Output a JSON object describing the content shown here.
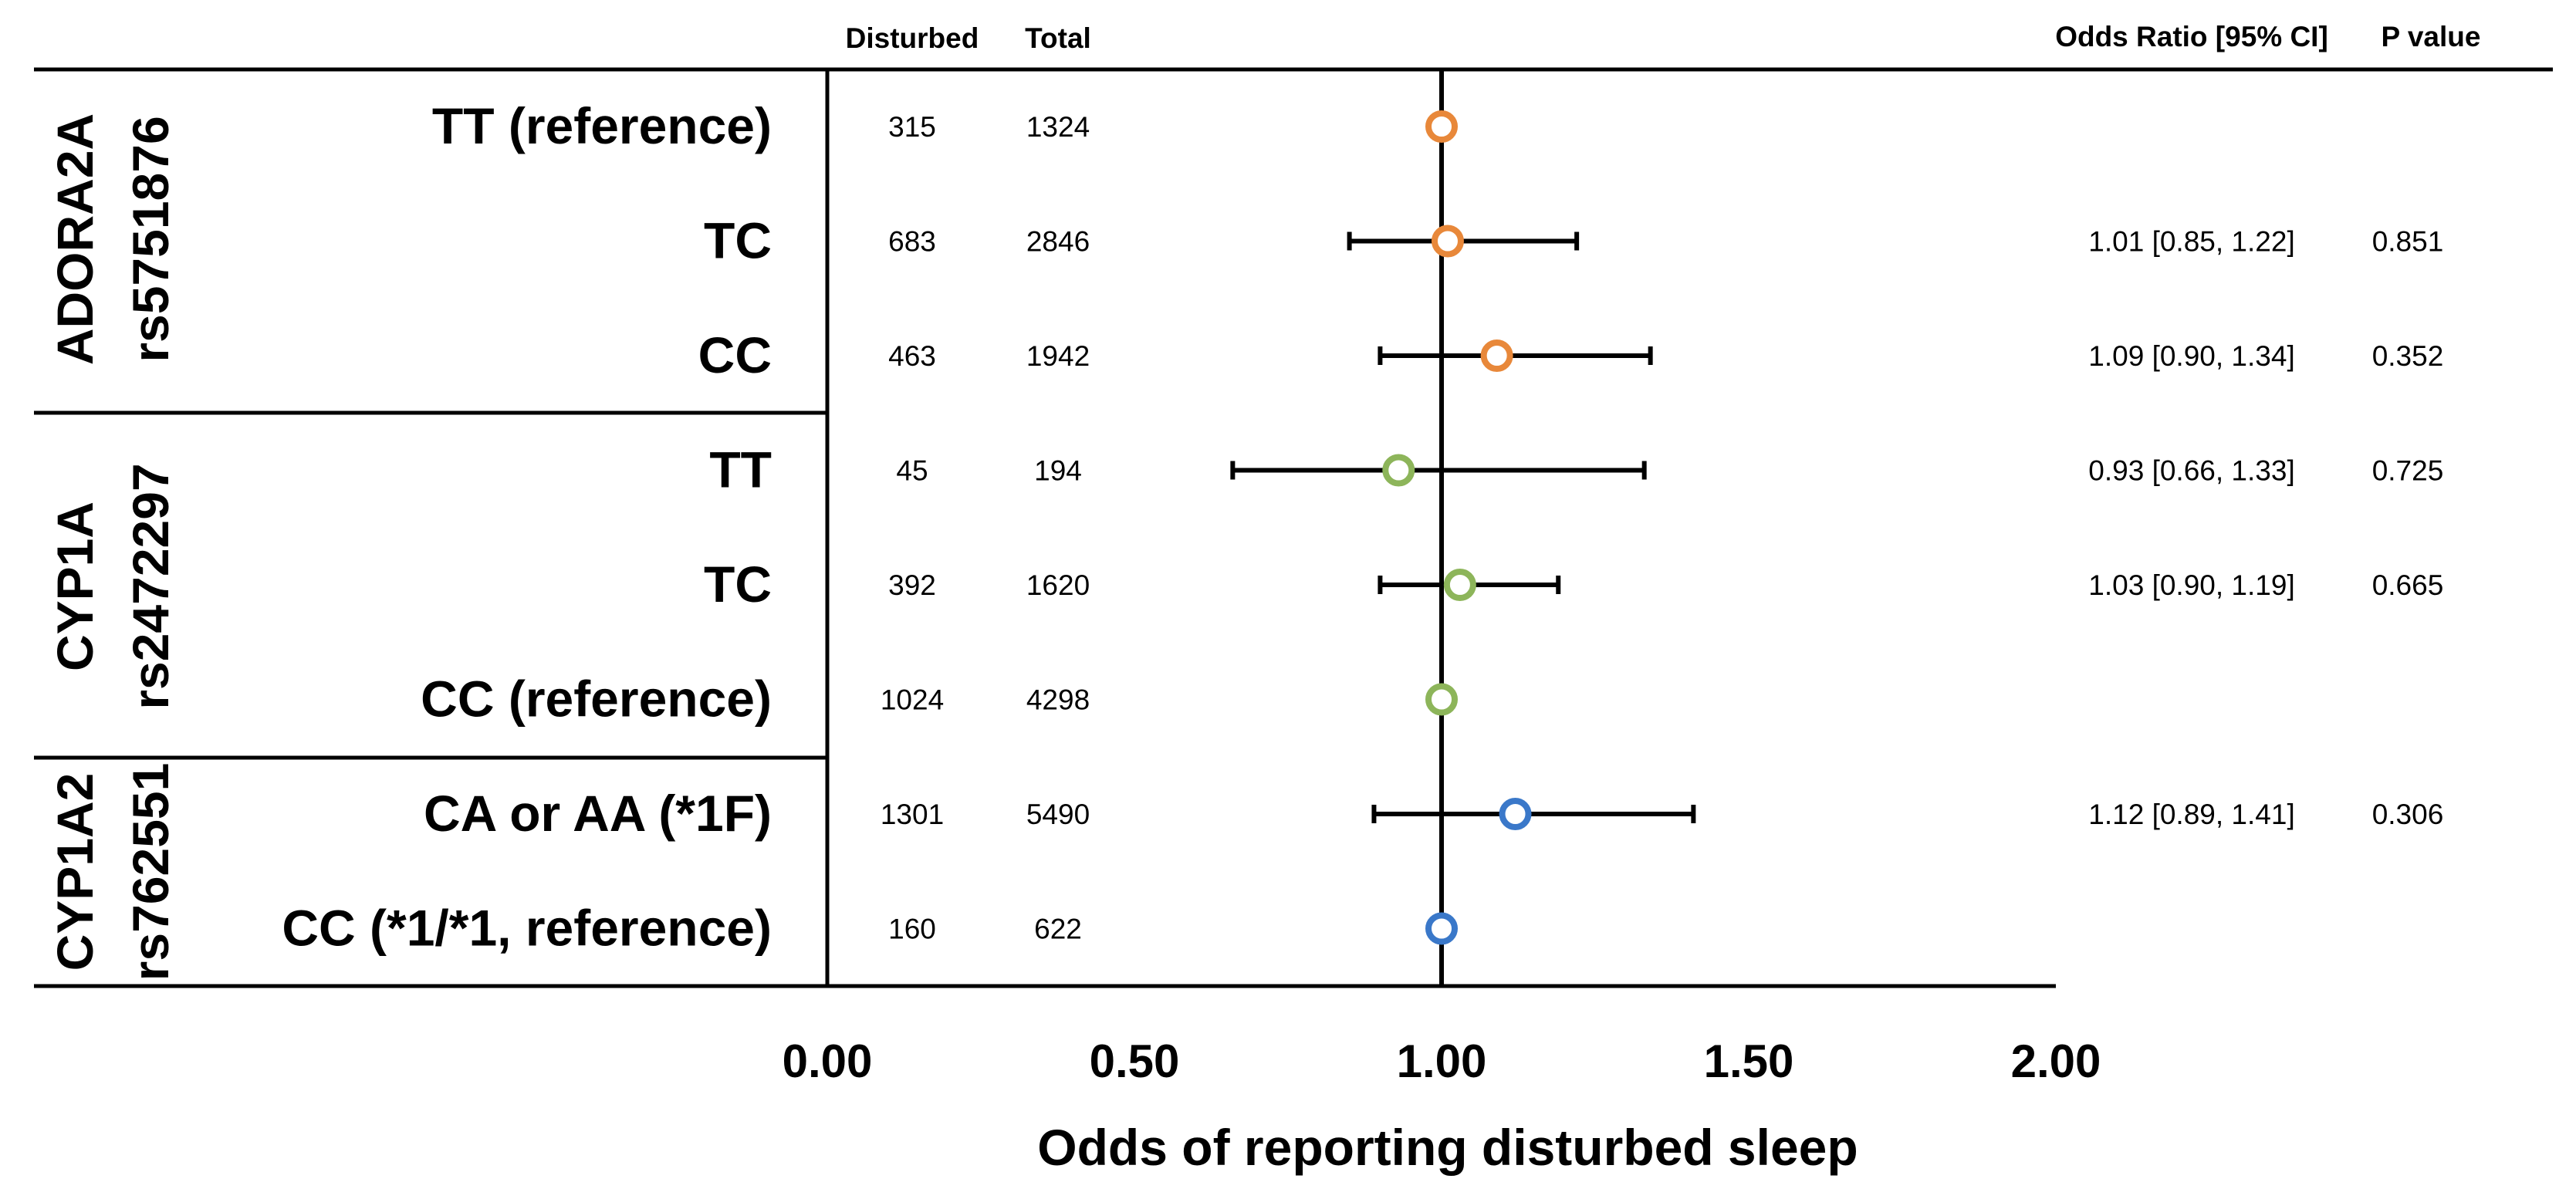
{
  "chart_data": {
    "type": "forest",
    "xlabel": "Odds of reporting disturbed sleep",
    "xlim": [
      0,
      2
    ],
    "xticks": [
      "0.00",
      "0.50",
      "1.00",
      "1.50",
      "2.00"
    ],
    "reference_line": 1.0,
    "headers": {
      "disturbed": "Disturbed",
      "total": "Total",
      "or_ci": "Odds Ratio [95% CI]",
      "p_value": "P value"
    },
    "groups": [
      {
        "gene": "ADORA2A",
        "snp": "rs5751876",
        "color": "#E8883A",
        "rows": [
          0,
          1,
          2
        ]
      },
      {
        "gene": "CYP1A",
        "snp": "rs2472297",
        "color": "#8DB55A",
        "rows": [
          3,
          4,
          5
        ]
      },
      {
        "gene": "CYP1A2",
        "snp": "rs762551",
        "color": "#3A78C9",
        "rows": [
          6,
          7
        ]
      }
    ],
    "rows": [
      {
        "genotype": "TT (reference)",
        "disturbed": "315",
        "total": "1324",
        "or": 1.0,
        "lo": null,
        "hi": null,
        "or_ci": "",
        "p": ""
      },
      {
        "genotype": "TC",
        "disturbed": "683",
        "total": "2846",
        "or": 1.01,
        "lo": 0.85,
        "hi": 1.22,
        "or_ci": "1.01 [0.85, 1.22]",
        "p": "0.851"
      },
      {
        "genotype": "CC",
        "disturbed": "463",
        "total": "1942",
        "or": 1.09,
        "lo": 0.9,
        "hi": 1.34,
        "or_ci": "1.09 [0.90, 1.34]",
        "p": "0.352"
      },
      {
        "genotype": "TT",
        "disturbed": "45",
        "total": "194",
        "or": 0.93,
        "lo": 0.66,
        "hi": 1.33,
        "or_ci": "0.93 [0.66, 1.33]",
        "p": "0.725"
      },
      {
        "genotype": "TC",
        "disturbed": "392",
        "total": "1620",
        "or": 1.03,
        "lo": 0.9,
        "hi": 1.19,
        "or_ci": "1.03 [0.90, 1.19]",
        "p": "0.665"
      },
      {
        "genotype": "CC (reference)",
        "disturbed": "1024",
        "total": "4298",
        "or": 1.0,
        "lo": null,
        "hi": null,
        "or_ci": "",
        "p": ""
      },
      {
        "genotype": "CA or AA (*1F)",
        "disturbed": "1301",
        "total": "5490",
        "or": 1.12,
        "lo": 0.89,
        "hi": 1.41,
        "or_ci": "1.12 [0.89, 1.41]",
        "p": "0.306"
      },
      {
        "genotype": "CC (*1/*1, reference)",
        "disturbed": "160",
        "total": "622",
        "or": 1.0,
        "lo": null,
        "hi": null,
        "or_ci": "",
        "p": ""
      }
    ]
  }
}
